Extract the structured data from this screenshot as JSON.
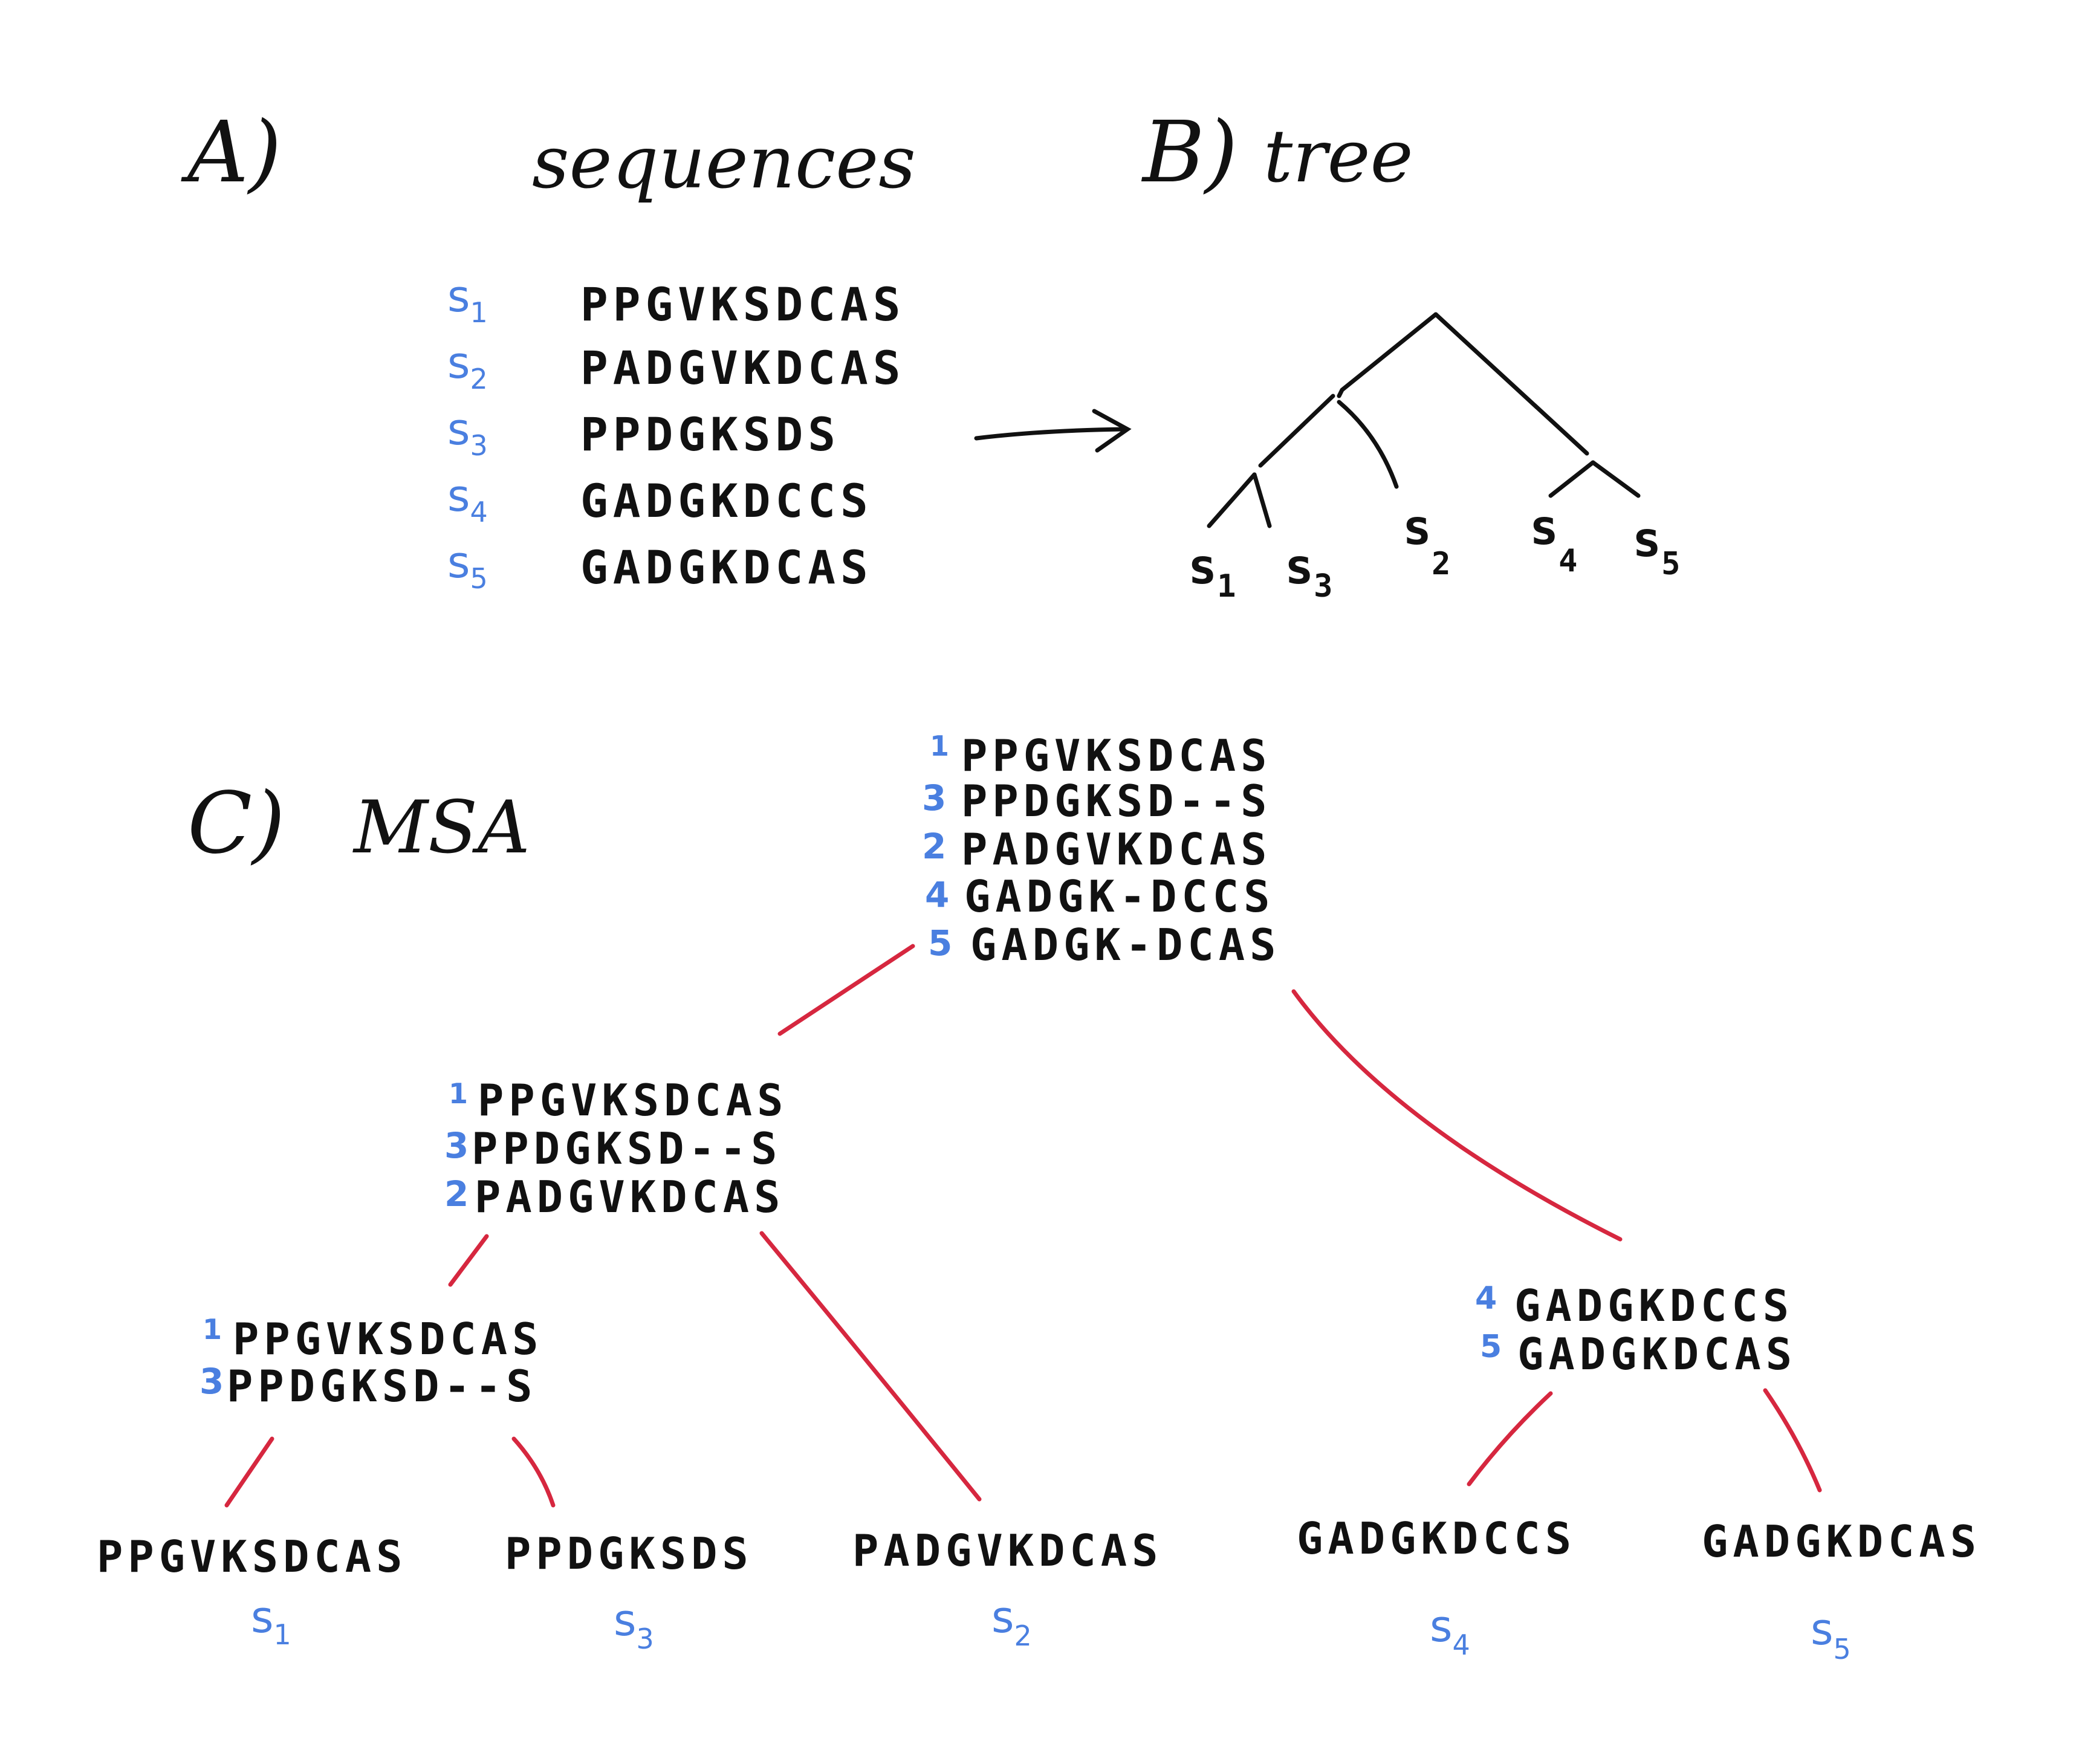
{
  "panel_a": {
    "label": "A)",
    "title": "sequences",
    "sequences": [
      {
        "id": "s",
        "sub": "1",
        "seq": "PPGVKSDCAS"
      },
      {
        "id": "s",
        "sub": "2",
        "seq": "PADGVKDCAS"
      },
      {
        "id": "s",
        "sub": "3",
        "seq": "PPDGKSDS"
      },
      {
        "id": "s",
        "sub": "4",
        "seq": "GADGKDCCS"
      },
      {
        "id": "s",
        "sub": "5",
        "seq": "GADGKDCAS"
      }
    ]
  },
  "panel_b": {
    "label": "B)",
    "title": "tree",
    "leaves": [
      {
        "id": "s",
        "sub": "1"
      },
      {
        "id": "s",
        "sub": "3"
      },
      {
        "id": "s",
        "sub": "2"
      },
      {
        "id": "s",
        "sub": "4"
      },
      {
        "id": "s",
        "sub": "5"
      }
    ]
  },
  "panel_c": {
    "label": "C)",
    "title": "MSA",
    "root": [
      {
        "n": "1",
        "seq": "PPGVKSDCAS"
      },
      {
        "n": "3",
        "seq": "PPDGKSD--S"
      },
      {
        "n": "2",
        "seq": "PADGVKDCAS"
      },
      {
        "n": "4",
        "seq": "GADGK-DCCS"
      },
      {
        "n": "5",
        "seq": "GADGK-DCAS"
      }
    ],
    "node_123": [
      {
        "n": "1",
        "seq": "PPGVKSDCAS"
      },
      {
        "n": "3",
        "seq": "PPDGKSD--S"
      },
      {
        "n": "2",
        "seq": "PADGVKDCAS"
      }
    ],
    "node_13": [
      {
        "n": "1",
        "seq": "PPGVKSDCAS"
      },
      {
        "n": "3",
        "seq": "PPDGKSD--S"
      }
    ],
    "node_45": [
      {
        "n": "4",
        "seq": "GADGKDCCS"
      },
      {
        "n": "5",
        "seq": "GADGKDCAS"
      }
    ],
    "leaves": [
      {
        "seq": "PPGVKSDCAS",
        "id": "s",
        "sub": "1"
      },
      {
        "seq": "PPDGKSDS",
        "id": "s",
        "sub": "3"
      },
      {
        "seq": "PADGVKDCAS",
        "id": "s",
        "sub": "2"
      },
      {
        "seq": "GADGKDCCS",
        "id": "s",
        "sub": "4"
      },
      {
        "seq": "GADGKDCAS",
        "id": "s",
        "sub": "5"
      }
    ]
  },
  "colors": {
    "ink": "#111111",
    "blue": "#4a7fe0",
    "red": "#d6273f"
  }
}
